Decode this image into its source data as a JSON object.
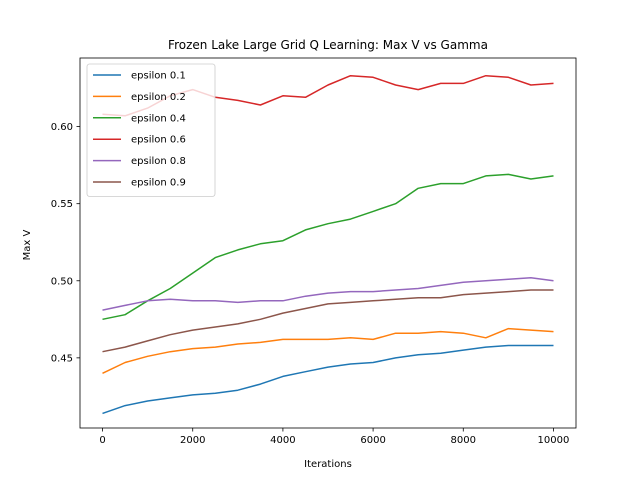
{
  "chart_data": {
    "type": "line",
    "title": "Frozen Lake Large Grid Q Learning: Max V vs Gamma",
    "xlabel": "Iterations",
    "ylabel": "Max V",
    "xlim": [
      -500,
      10500
    ],
    "ylim": [
      0.4045,
      0.6445
    ],
    "xticks": [
      0,
      2000,
      4000,
      6000,
      8000,
      10000
    ],
    "xtick_labels": [
      "0",
      "2000",
      "4000",
      "6000",
      "8000",
      "10000"
    ],
    "yticks": [
      0.45,
      0.5,
      0.55,
      0.6
    ],
    "ytick_labels": [
      "0.45",
      "0.50",
      "0.55",
      "0.60"
    ],
    "grid": false,
    "legend_position": "top-left",
    "x": [
      0,
      500,
      1000,
      1500,
      2000,
      2500,
      3000,
      3500,
      4000,
      4500,
      5000,
      5500,
      6000,
      6500,
      7000,
      7500,
      8000,
      8500,
      9000,
      9500,
      10000
    ],
    "series": [
      {
        "name": "epsilon 0.1",
        "color": "#1f77b4",
        "values": [
          0.414,
          0.419,
          0.422,
          0.424,
          0.426,
          0.427,
          0.429,
          0.433,
          0.438,
          0.441,
          0.444,
          0.446,
          0.447,
          0.45,
          0.452,
          0.453,
          0.455,
          0.457,
          0.458,
          0.458,
          0.458
        ]
      },
      {
        "name": "epsilon 0.2",
        "color": "#ff7f0e",
        "values": [
          0.44,
          0.447,
          0.451,
          0.454,
          0.456,
          0.457,
          0.459,
          0.46,
          0.462,
          0.462,
          0.462,
          0.463,
          0.462,
          0.466,
          0.466,
          0.467,
          0.466,
          0.463,
          0.469,
          0.468,
          0.467
        ]
      },
      {
        "name": "epsilon 0.4",
        "color": "#2ca02c",
        "values": [
          0.475,
          0.478,
          0.487,
          0.495,
          0.505,
          0.515,
          0.52,
          0.524,
          0.526,
          0.533,
          0.537,
          0.54,
          0.545,
          0.55,
          0.56,
          0.563,
          0.563,
          0.568,
          0.569,
          0.566,
          0.568
        ]
      },
      {
        "name": "epsilon 0.6",
        "color": "#d62728",
        "values": [
          0.608,
          0.607,
          0.612,
          0.62,
          0.624,
          0.619,
          0.617,
          0.614,
          0.62,
          0.619,
          0.627,
          0.633,
          0.632,
          0.627,
          0.624,
          0.628,
          0.628,
          0.633,
          0.632,
          0.627,
          0.628
        ]
      },
      {
        "name": "epsilon 0.8",
        "color": "#9467bd",
        "values": [
          0.481,
          0.484,
          0.487,
          0.488,
          0.487,
          0.487,
          0.486,
          0.487,
          0.487,
          0.49,
          0.492,
          0.493,
          0.493,
          0.494,
          0.495,
          0.497,
          0.499,
          0.5,
          0.501,
          0.502,
          0.5
        ]
      },
      {
        "name": "epsilon 0.9",
        "color": "#8c564b",
        "values": [
          0.454,
          0.457,
          0.461,
          0.465,
          0.468,
          0.47,
          0.472,
          0.475,
          0.479,
          0.482,
          0.485,
          0.486,
          0.487,
          0.488,
          0.489,
          0.489,
          0.491,
          0.492,
          0.493,
          0.494,
          0.494
        ]
      }
    ]
  }
}
